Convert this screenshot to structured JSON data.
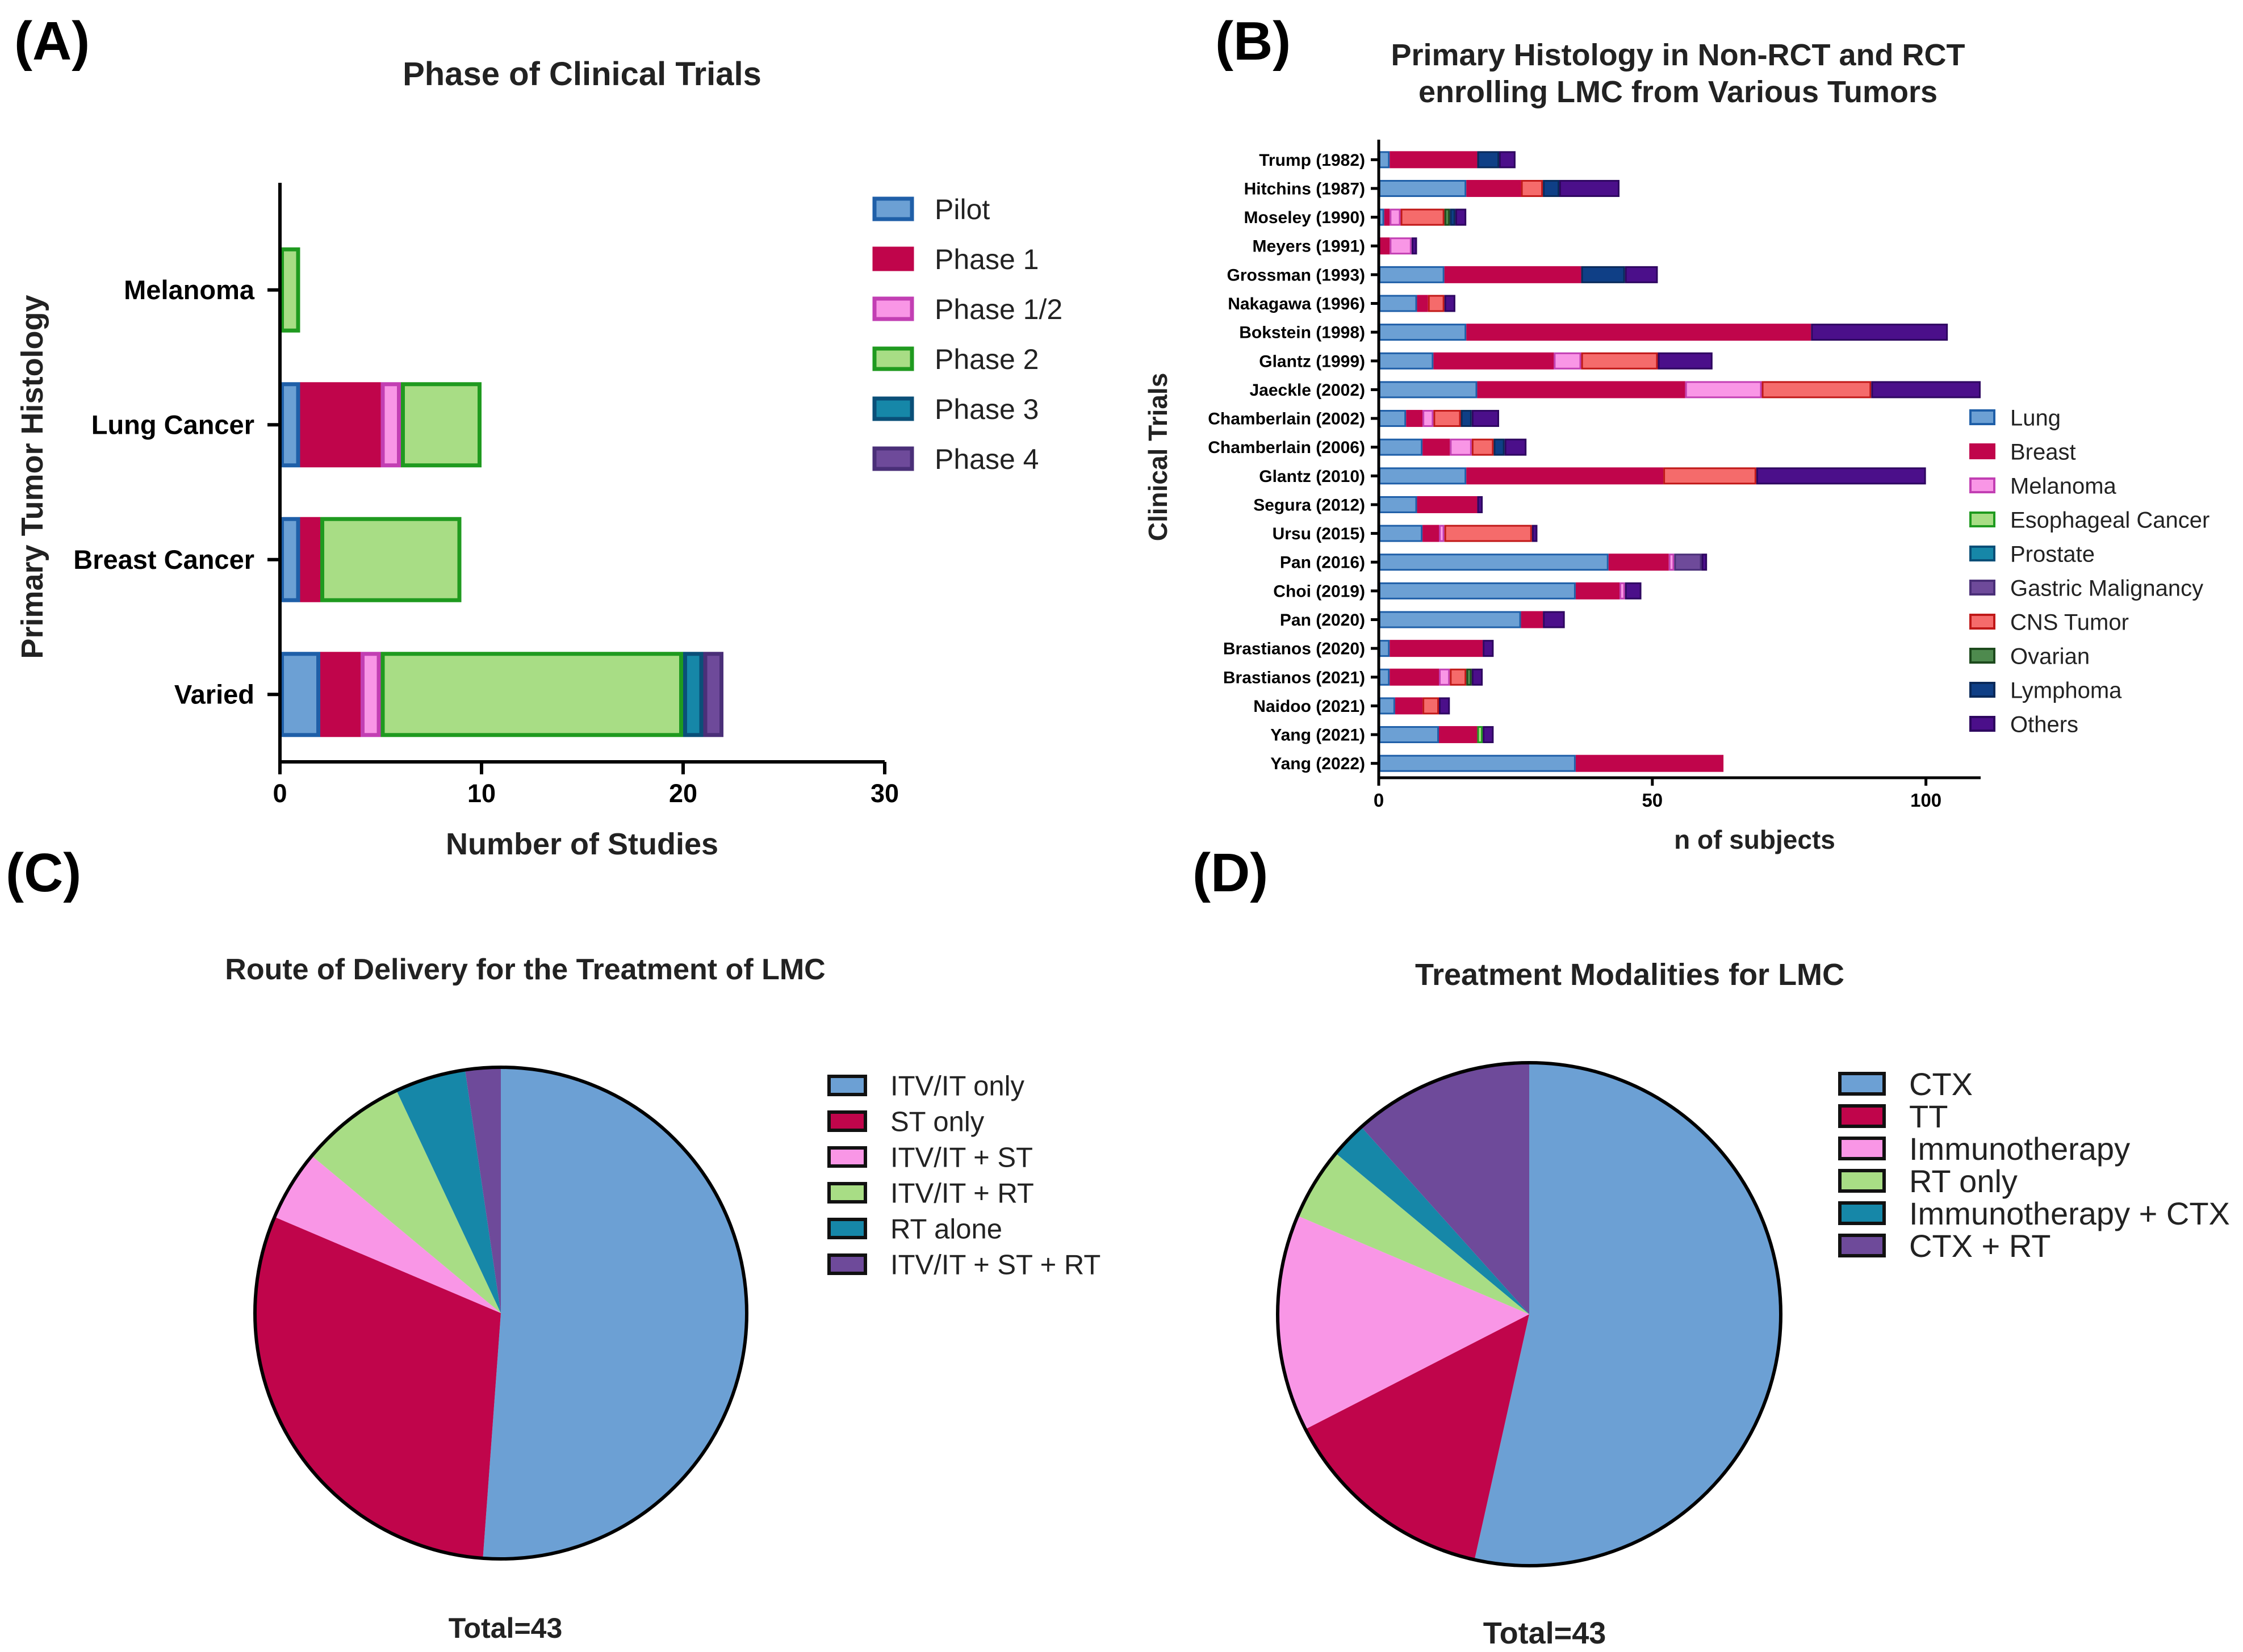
{
  "chart_data": [
    {
      "panel": "(A)",
      "type": "bar",
      "orientation": "horizontal",
      "stacked": true,
      "title": "Phase of Clinical Trials",
      "xlabel": "Number of Studies",
      "ylabel": "Primary Tumor Histology",
      "xlim": [
        0,
        30
      ],
      "xticks": [
        "0",
        "10",
        "20",
        "30"
      ],
      "categories": [
        "Melanoma",
        "Lung Cancer",
        "Breast Cancer",
        "Varied"
      ],
      "series": [
        {
          "name": "Pilot",
          "color": "#6ca0d4",
          "edge": "#1f5fa8",
          "values": [
            0,
            1,
            1,
            2
          ]
        },
        {
          "name": "Phase 1",
          "color": "#c0054b",
          "edge": "#c0054b",
          "values": [
            0,
            4,
            1,
            2
          ]
        },
        {
          "name": "Phase 1/2",
          "color": "#f996e6",
          "edge": "#c23fb3",
          "values": [
            0,
            1,
            0,
            1
          ]
        },
        {
          "name": "Phase 2",
          "color": "#a8dd85",
          "edge": "#1f9a1f",
          "values": [
            1,
            4,
            7,
            15
          ]
        },
        {
          "name": "Phase 3",
          "color": "#1687a8",
          "edge": "#0a4f78",
          "values": [
            0,
            0,
            0,
            1
          ]
        },
        {
          "name": "Phase 4",
          "color": "#6e4a9a",
          "edge": "#4a2f78",
          "values": [
            0,
            0,
            0,
            1
          ]
        }
      ],
      "legend": "right"
    },
    {
      "panel": "(B)",
      "type": "bar",
      "orientation": "horizontal",
      "stacked": true,
      "title": [
        "Primary Histology in Non-RCT and RCT",
        "enrolling LMC from Various Tumors"
      ],
      "xlabel": "n of subjects",
      "ylabel": "Clinical Trials",
      "xlim": [
        0,
        110
      ],
      "xticks": [
        "0",
        "50",
        "100"
      ],
      "categories": [
        "Trump (1982)",
        "Hitchins (1987)",
        "Moseley (1990)",
        "Meyers (1991)",
        "Grossman (1993)",
        "Nakagawa (1996)",
        "Bokstein (1998)",
        "Glantz (1999)",
        "Jaeckle (2002)",
        "Chamberlain (2002)",
        "Chamberlain (2006)",
        "Glantz (2010)",
        "Segura (2012)",
        "Ursu (2015)",
        "Pan (2016)",
        "Choi (2019)",
        "Pan (2020)",
        "Brastianos (2020)",
        "Brastianos (2021)",
        "Naidoo (2021)",
        "Yang (2021)",
        "Yang (2022)"
      ],
      "series": [
        {
          "name": "Lung",
          "color": "#6ca0d4",
          "edge": "#1f5fa8",
          "values": [
            2,
            16,
            1,
            0,
            12,
            7,
            16,
            10,
            18,
            5,
            8,
            16,
            7,
            8,
            42,
            36,
            26,
            2,
            2,
            3,
            11,
            36
          ]
        },
        {
          "name": "Breast",
          "color": "#c0054b",
          "edge": "#c0054b",
          "values": [
            16,
            10,
            1,
            2,
            25,
            2,
            63,
            22,
            38,
            3,
            5,
            36,
            11,
            3,
            11,
            8,
            4,
            17,
            9,
            5,
            7,
            27
          ]
        },
        {
          "name": "Melanoma",
          "color": "#f996e6",
          "edge": "#c23fb3",
          "values": [
            0,
            0,
            2,
            4,
            0,
            0,
            0,
            5,
            14,
            2,
            4,
            0,
            0,
            1,
            1,
            1,
            0,
            0,
            2,
            0,
            0,
            0
          ]
        },
        {
          "name": "Esophageal Cancer",
          "color": "#a8dd85",
          "edge": "#1f9a1f",
          "values": [
            0,
            0,
            0,
            0,
            0,
            0,
            0,
            0,
            0,
            0,
            0,
            0,
            0,
            0,
            0,
            0,
            0,
            0,
            0,
            0,
            1,
            0
          ]
        },
        {
          "name": "Prostate",
          "color": "#1687a8",
          "edge": "#0a4f78",
          "values": [
            0,
            0,
            0,
            0,
            0,
            0,
            0,
            0,
            0,
            0,
            0,
            0,
            0,
            0,
            0,
            0,
            0,
            0,
            0,
            0,
            0,
            0
          ]
        },
        {
          "name": "Gastric Malignancy",
          "color": "#6e4a9a",
          "edge": "#4a2f78",
          "values": [
            0,
            0,
            0,
            0,
            0,
            0,
            0,
            0,
            0,
            0,
            0,
            0,
            0,
            0,
            5,
            0,
            0,
            0,
            0,
            0,
            0,
            0
          ]
        },
        {
          "name": "CNS Tumor",
          "color": "#f56b6b",
          "edge": "#c01818",
          "values": [
            0,
            4,
            8,
            0,
            0,
            3,
            0,
            14,
            20,
            5,
            4,
            17,
            0,
            16,
            0,
            0,
            0,
            0,
            3,
            3,
            0,
            0
          ]
        },
        {
          "name": "Ovarian",
          "color": "#4e8a4e",
          "edge": "#1d4a1d",
          "values": [
            0,
            0,
            1,
            0,
            0,
            0,
            0,
            0,
            0,
            0,
            0,
            0,
            0,
            0,
            0,
            0,
            0,
            0,
            1,
            0,
            0,
            0
          ]
        },
        {
          "name": " Lymphoma",
          "color": "#0f3f86",
          "edge": "#0a2a5a",
          "values": [
            4,
            3,
            1,
            0,
            8,
            0,
            0,
            0,
            0,
            2,
            2,
            0,
            0,
            0,
            0,
            0,
            0,
            0,
            0,
            0,
            0,
            0
          ]
        },
        {
          "name": "Others",
          "color": "#4b0f8a",
          "edge": "#2e0760",
          "values": [
            3,
            11,
            2,
            1,
            6,
            2,
            25,
            10,
            20,
            5,
            4,
            31,
            1,
            1,
            1,
            3,
            4,
            2,
            2,
            2,
            2,
            0
          ]
        }
      ],
      "legend": "right"
    },
    {
      "panel": "(C)",
      "type": "pie",
      "title": "Route of Delivery for the Treatment of LMC",
      "total_label": "Total=43",
      "labels": [
        "ITV/IT only",
        "ST only",
        "ITV/IT + ST",
        "ITV/IT + RT",
        "RT alone",
        "ITV/IT + ST + RT"
      ],
      "values": [
        22,
        13,
        2,
        3,
        2,
        1
      ],
      "colors": [
        "#6ca0d4",
        "#c0054b",
        "#f996e6",
        "#a8dd85",
        "#1687a8",
        "#6e4a9a"
      ],
      "legend": "right"
    },
    {
      "panel": "(D)",
      "type": "pie",
      "title": "Treatment Modalities for LMC",
      "total_label": "Total=43",
      "labels": [
        "CTX",
        "TT",
        "Immunotherapy",
        "RT only",
        "Immunotherapy + CTX",
        "CTX + RT"
      ],
      "values": [
        23,
        6,
        6,
        2,
        1,
        5
      ],
      "colors": [
        "#6ca0d4",
        "#c0054b",
        "#f996e6",
        "#a8dd85",
        "#1687a8",
        "#6e4a9a"
      ],
      "legend": "right"
    }
  ]
}
